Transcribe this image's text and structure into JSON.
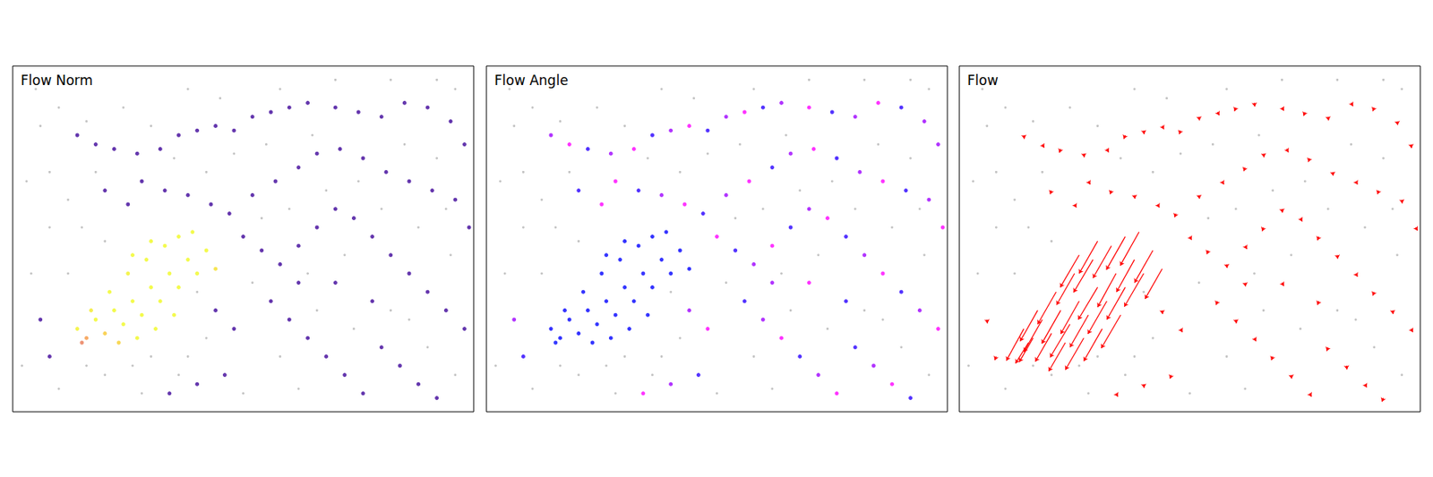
{
  "chart_data": {
    "type": "scatter",
    "tick_labels": false,
    "xlim": [
      0,
      100
    ],
    "ylim": [
      0,
      75
    ],
    "panels": [
      {
        "title": "Flow Norm",
        "type": "scatter",
        "norm_range": [
          0,
          8
        ]
      },
      {
        "title": "Flow Angle",
        "type": "scatter",
        "angle_range": [
          0,
          360
        ]
      },
      {
        "title": "Flow",
        "type": "vector",
        "color": "#ff0000"
      }
    ],
    "background": {
      "color": "#b4b4b4",
      "points": [
        [
          5,
          70
        ],
        [
          10,
          66
        ],
        [
          16,
          63
        ],
        [
          3,
          50
        ],
        [
          8,
          40
        ],
        [
          12,
          46
        ],
        [
          4,
          30
        ],
        [
          2,
          10
        ],
        [
          10,
          5
        ],
        [
          20,
          8
        ],
        [
          26,
          10
        ],
        [
          30,
          12
        ],
        [
          38,
          12
        ],
        [
          42,
          16
        ],
        [
          15,
          40
        ],
        [
          20,
          37
        ],
        [
          8,
          52
        ],
        [
          30,
          62
        ],
        [
          45,
          68
        ],
        [
          55,
          58
        ],
        [
          65,
          60
        ],
        [
          75,
          50
        ],
        [
          85,
          58
        ],
        [
          92,
          55
        ],
        [
          96,
          70
        ],
        [
          60,
          44
        ],
        [
          68,
          48
        ],
        [
          80,
          44
        ],
        [
          88,
          40
        ],
        [
          95,
          34
        ],
        [
          52,
          28
        ],
        [
          58,
          12
        ],
        [
          66,
          22
        ],
        [
          74,
          18
        ],
        [
          82,
          22
        ],
        [
          90,
          14
        ],
        [
          96,
          8
        ],
        [
          50,
          4
        ],
        [
          62,
          5
        ],
        [
          35,
          55
        ],
        [
          42,
          52
        ],
        [
          48,
          56
        ],
        [
          24,
          66
        ],
        [
          38,
          70
        ],
        [
          70,
          72
        ],
        [
          82,
          72
        ],
        [
          92,
          72
        ],
        [
          12,
          30
        ],
        [
          6,
          62
        ],
        [
          18,
          52
        ],
        [
          54,
          42
        ],
        [
          64,
          30
        ],
        [
          72,
          34
        ],
        [
          86,
          20
        ],
        [
          94,
          44
        ],
        [
          40,
          26
        ],
        [
          36,
          8
        ],
        [
          28,
          4
        ],
        [
          16,
          10
        ],
        [
          58,
          70
        ]
      ]
    },
    "events": {
      "points": [
        [
          14,
          18,
          -3.8,
          -6.9
        ],
        [
          18,
          20,
          -4,
          -7
        ],
        [
          22,
          22,
          -4.1,
          -7.2
        ],
        [
          26,
          24,
          -4,
          -7.1
        ],
        [
          30,
          27,
          -4.2,
          -7
        ],
        [
          34,
          30,
          -4,
          -7.3
        ],
        [
          38,
          33,
          -3.9,
          -7
        ],
        [
          36,
          38,
          -4.1,
          -7.2
        ],
        [
          33,
          36,
          -4,
          -7
        ],
        [
          29,
          33,
          -4.2,
          -7.1
        ],
        [
          25,
          30,
          -3.9,
          -6.8
        ],
        [
          21,
          26,
          -4,
          -7
        ],
        [
          17,
          22,
          -3.8,
          -6.7
        ],
        [
          24,
          19,
          -4.3,
          -7.2
        ],
        [
          28,
          21,
          -4,
          -7
        ],
        [
          32,
          24,
          -4.1,
          -7.1
        ],
        [
          36,
          27,
          -4,
          -7
        ],
        [
          40,
          30,
          -4.2,
          -7.2
        ],
        [
          44,
          31,
          -3.7,
          -6.5
        ],
        [
          42,
          35,
          -4,
          -7
        ],
        [
          39,
          39,
          -4.1,
          -7.3
        ],
        [
          27,
          16,
          -4,
          -6.9
        ],
        [
          23,
          15,
          -3.6,
          -6.2
        ],
        [
          31,
          18,
          -4,
          -7
        ],
        [
          35,
          21,
          -4.2,
          -7.2
        ],
        [
          20,
          17,
          -3.5,
          -6.1
        ],
        [
          16,
          16,
          -3,
          -5.2
        ],
        [
          30,
          37,
          -4,
          -7
        ],
        [
          26,
          34,
          -4.1,
          -7
        ],
        [
          15,
          15,
          -2.8,
          -4.5
        ],
        [
          14,
          60,
          0.1,
          -0.8
        ],
        [
          18,
          58,
          0.4,
          -0.7
        ],
        [
          22,
          57,
          -0.3,
          -0.8
        ],
        [
          27,
          56,
          0.1,
          -0.8
        ],
        [
          32,
          57,
          0.4,
          -0.7
        ],
        [
          36,
          60,
          -0.3,
          -0.8
        ],
        [
          40,
          61,
          0.1,
          -0.8
        ],
        [
          44,
          62,
          0.4,
          -0.7
        ],
        [
          48,
          61,
          -0.3,
          -0.8
        ],
        [
          52,
          64,
          0.1,
          -0.8
        ],
        [
          56,
          65,
          0.4,
          -0.7
        ],
        [
          60,
          66,
          -0.3,
          -0.8
        ],
        [
          64,
          67,
          0.1,
          -0.8
        ],
        [
          70,
          66,
          0.4,
          -0.7
        ],
        [
          75,
          65,
          -0.3,
          -0.8
        ],
        [
          80,
          64,
          0.1,
          -0.8
        ],
        [
          85,
          67,
          0.4,
          -0.7
        ],
        [
          90,
          66,
          -0.3,
          -0.8
        ],
        [
          95,
          63,
          0.1,
          -0.8
        ],
        [
          28,
          50,
          0.4,
          -0.7
        ],
        [
          33,
          48,
          -0.3,
          -0.8
        ],
        [
          38,
          47,
          0.1,
          -0.8
        ],
        [
          43,
          45,
          0.4,
          -0.7
        ],
        [
          47,
          43,
          -0.3,
          -0.8
        ],
        [
          52,
          47,
          0.1,
          -0.8
        ],
        [
          57,
          50,
          0.4,
          -0.7
        ],
        [
          62,
          53,
          -0.3,
          -0.8
        ],
        [
          66,
          56,
          0.1,
          -0.8
        ],
        [
          71,
          57,
          0.4,
          -0.7
        ],
        [
          76,
          55,
          -0.3,
          -0.8
        ],
        [
          81,
          52,
          0.1,
          -0.8
        ],
        [
          86,
          50,
          0.4,
          -0.7
        ],
        [
          91,
          48,
          -0.3,
          -0.8
        ],
        [
          96,
          46,
          0.1,
          -0.8
        ],
        [
          50,
          38,
          0.4,
          -0.7
        ],
        [
          54,
          35,
          -0.3,
          -0.8
        ],
        [
          58,
          32,
          0.1,
          -0.8
        ],
        [
          62,
          36,
          0.4,
          -0.7
        ],
        [
          66,
          40,
          -0.3,
          -0.8
        ],
        [
          70,
          44,
          0.1,
          -0.8
        ],
        [
          74,
          42,
          0.4,
          -0.7
        ],
        [
          78,
          38,
          -0.3,
          -0.8
        ],
        [
          82,
          34,
          0.1,
          -0.8
        ],
        [
          86,
          30,
          0.4,
          -0.7
        ],
        [
          90,
          26,
          -0.3,
          -0.8
        ],
        [
          94,
          22,
          0.1,
          -0.8
        ],
        [
          98,
          18,
          0.4,
          -0.7
        ],
        [
          56,
          24,
          -0.3,
          -0.8
        ],
        [
          60,
          20,
          0.1,
          -0.8
        ],
        [
          64,
          16,
          0.4,
          -0.7
        ],
        [
          68,
          12,
          -0.3,
          -0.8
        ],
        [
          72,
          8,
          0.1,
          -0.8
        ],
        [
          76,
          4,
          0.4,
          -0.7
        ],
        [
          80,
          14,
          -0.3,
          -0.8
        ],
        [
          84,
          10,
          0.1,
          -0.8
        ],
        [
          88,
          6,
          0.4,
          -0.7
        ],
        [
          92,
          3,
          -0.3,
          -0.8
        ],
        [
          44,
          22,
          0.1,
          -0.8
        ],
        [
          48,
          18,
          0.4,
          -0.7
        ],
        [
          46,
          8,
          -0.3,
          -0.8
        ],
        [
          40,
          6,
          0.1,
          -0.8
        ],
        [
          34,
          4,
          0.4,
          -0.7
        ],
        [
          8,
          12,
          -0.3,
          -0.8
        ],
        [
          6,
          20,
          0.1,
          -0.8
        ],
        [
          25,
          45,
          0.4,
          -0.7
        ],
        [
          20,
          48,
          -0.3,
          -0.8
        ],
        [
          62,
          28,
          0.1,
          -0.8
        ],
        [
          70,
          28,
          0.4,
          -0.7
        ],
        [
          78,
          24,
          -0.3,
          -0.8
        ],
        [
          98,
          58,
          0.1,
          -0.8
        ],
        [
          99,
          40,
          0.4,
          -0.7
        ]
      ]
    }
  }
}
